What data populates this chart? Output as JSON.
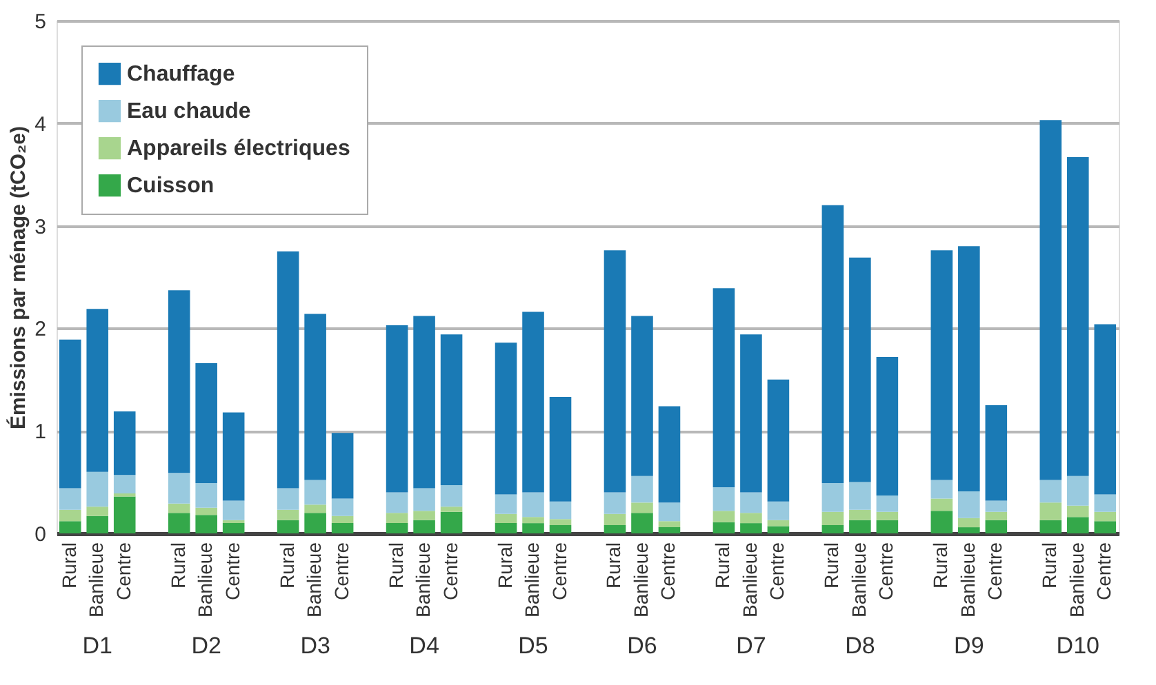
{
  "chart_data": {
    "type": "bar",
    "stacked": true,
    "ylabel": "Émissions par ménage (tCO₂e)",
    "categories": [
      "Rural",
      "Banlieue",
      "Centre",
      "Rural",
      "Banlieue",
      "Centre",
      "Rural",
      "Banlieue",
      "Centre",
      "Rural",
      "Banlieue",
      "Centre",
      "Rural",
      "Banlieue",
      "Centre",
      "Rural",
      "Banlieue",
      "Centre",
      "Rural",
      "Banlieue",
      "Centre",
      "Rural",
      "Banlieue",
      "Centre",
      "Rural",
      "Banlieue",
      "Centre",
      "Rural",
      "Banlieue",
      "Centre"
    ],
    "annotations": [
      "D1",
      "D2",
      "D3",
      "D4",
      "D5",
      "D6",
      "D7",
      "D8",
      "D9",
      "D10"
    ],
    "series": [
      {
        "name": "Cuisson",
        "color": "#34a84a",
        "values": [
          0.12,
          0.17,
          0.36,
          0.2,
          0.18,
          0.1,
          0.13,
          0.2,
          0.1,
          0.1,
          0.13,
          0.21,
          0.1,
          0.1,
          0.08,
          0.08,
          0.2,
          0.06,
          0.11,
          0.1,
          0.07,
          0.08,
          0.13,
          0.13,
          0.22,
          0.06,
          0.13,
          0.13,
          0.16,
          0.12
        ]
      },
      {
        "name": "Appareils électriques",
        "color": "#a8d58e",
        "values": [
          0.11,
          0.09,
          0.03,
          0.09,
          0.07,
          0.03,
          0.1,
          0.08,
          0.07,
          0.1,
          0.09,
          0.05,
          0.09,
          0.06,
          0.06,
          0.11,
          0.1,
          0.06,
          0.11,
          0.1,
          0.06,
          0.13,
          0.1,
          0.08,
          0.12,
          0.09,
          0.08,
          0.17,
          0.11,
          0.09
        ]
      },
      {
        "name": "Eau chaude",
        "color": "#99cadf",
        "values": [
          0.21,
          0.34,
          0.18,
          0.3,
          0.24,
          0.19,
          0.21,
          0.24,
          0.17,
          0.2,
          0.22,
          0.21,
          0.19,
          0.24,
          0.17,
          0.21,
          0.26,
          0.18,
          0.23,
          0.2,
          0.18,
          0.28,
          0.27,
          0.16,
          0.18,
          0.26,
          0.11,
          0.22,
          0.29,
          0.17
        ]
      },
      {
        "name": "Chauffage",
        "color": "#1a7ab5",
        "values": [
          1.45,
          1.59,
          0.62,
          1.78,
          1.17,
          0.86,
          2.31,
          1.62,
          0.64,
          1.63,
          1.68,
          1.47,
          1.48,
          1.76,
          1.02,
          2.36,
          1.56,
          0.94,
          1.94,
          1.54,
          1.19,
          2.71,
          2.19,
          1.35,
          2.24,
          2.39,
          0.93,
          3.51,
          3.11,
          1.66
        ]
      }
    ],
    "ylim": [
      0,
      5
    ],
    "yticks": [
      0,
      1,
      2,
      3,
      4,
      5
    ],
    "grid": "y",
    "legend": "top left"
  }
}
